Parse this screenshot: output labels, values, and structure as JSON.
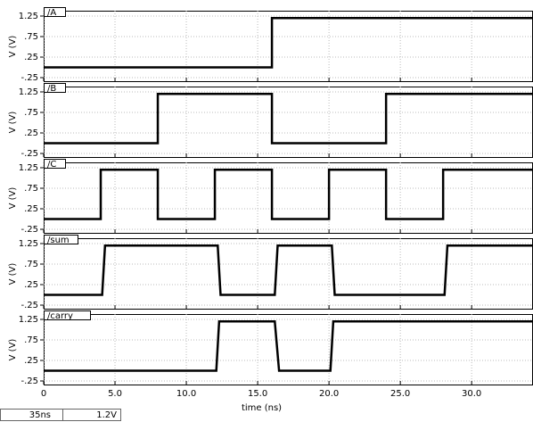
{
  "chart_data": [
    {
      "type": "line",
      "title": "/A",
      "ylabel": "V (V)",
      "x": [
        0,
        16,
        16,
        34.3
      ],
      "values": [
        0,
        0,
        1.2,
        1.2
      ],
      "color": "#000000",
      "xlim": [
        0,
        34.3
      ],
      "xticks": [
        0,
        {
          "value": 5,
          "label": "5.0"
        },
        {
          "value": 10,
          "label": "10.0"
        },
        {
          "value": 15,
          "label": "15.0"
        },
        {
          "value": 20,
          "label": "20.0"
        },
        {
          "value": 25,
          "label": "25.0"
        },
        {
          "value": 30,
          "label": "30.0"
        }
      ],
      "ylim": [
        -0.25,
        1.25
      ],
      "yticks": [
        1.25,
        {
          "value": 0.75,
          "label": ".75"
        },
        {
          "value": 0.25,
          "label": ".25"
        },
        {
          "value": -0.25,
          "label": "-.25"
        }
      ],
      "grid": true
    },
    {
      "type": "line",
      "title": "/B",
      "ylabel": "V (V)",
      "x": [
        0,
        8,
        8,
        16,
        16,
        24,
        24,
        34.3
      ],
      "values": [
        0,
        0,
        1.2,
        1.2,
        0,
        0,
        1.2,
        1.2
      ],
      "color": "#000000",
      "xlim": [
        0,
        34.3
      ],
      "xticks": [
        0,
        {
          "value": 5,
          "label": "5.0"
        },
        {
          "value": 10,
          "label": "10.0"
        },
        {
          "value": 15,
          "label": "15.0"
        },
        {
          "value": 20,
          "label": "20.0"
        },
        {
          "value": 25,
          "label": "25.0"
        },
        {
          "value": 30,
          "label": "30.0"
        }
      ],
      "ylim": [
        -0.25,
        1.25
      ],
      "yticks": [
        1.25,
        {
          "value": 0.75,
          "label": ".75"
        },
        {
          "value": 0.25,
          "label": ".25"
        },
        {
          "value": -0.25,
          "label": "-.25"
        }
      ],
      "grid": true
    },
    {
      "type": "line",
      "title": "/C",
      "ylabel": "V (V)",
      "x": [
        0,
        4,
        4,
        8,
        8,
        12,
        12,
        16,
        16,
        20,
        20,
        24,
        24,
        28,
        28,
        34.3
      ],
      "values": [
        0,
        0,
        1.2,
        1.2,
        0,
        0,
        1.2,
        1.2,
        0,
        0,
        1.2,
        1.2,
        0,
        0,
        1.2,
        1.2
      ],
      "color": "#000000",
      "xlim": [
        0,
        34.3
      ],
      "xticks": [
        0,
        {
          "value": 5,
          "label": "5.0"
        },
        {
          "value": 10,
          "label": "10.0"
        },
        {
          "value": 15,
          "label": "15.0"
        },
        {
          "value": 20,
          "label": "20.0"
        },
        {
          "value": 25,
          "label": "25.0"
        },
        {
          "value": 30,
          "label": "30.0"
        }
      ],
      "ylim": [
        -0.25,
        1.25
      ],
      "yticks": [
        1.25,
        {
          "value": 0.75,
          "label": ".75"
        },
        {
          "value": 0.25,
          "label": ".25"
        },
        {
          "value": -0.25,
          "label": "-.25"
        }
      ],
      "grid": true
    },
    {
      "type": "line",
      "title": "/sum",
      "ylabel": "V (V)",
      "x": [
        0,
        4.1,
        4.3,
        12.2,
        12.4,
        16.2,
        16.4,
        20.2,
        20.4,
        28.1,
        28.3,
        34.3
      ],
      "values": [
        0,
        0,
        1.2,
        1.2,
        0,
        0,
        1.2,
        1.2,
        0,
        0,
        1.2,
        1.2
      ],
      "color": "#000000",
      "xlim": [
        0,
        34.3
      ],
      "xticks": [
        0,
        {
          "value": 5,
          "label": "5.0"
        },
        {
          "value": 10,
          "label": "10.0"
        },
        {
          "value": 15,
          "label": "15.0"
        },
        {
          "value": 20,
          "label": "20.0"
        },
        {
          "value": 25,
          "label": "25.0"
        },
        {
          "value": 30,
          "label": "30.0"
        }
      ],
      "ylim": [
        -0.25,
        1.25
      ],
      "yticks": [
        1.25,
        {
          "value": 0.75,
          "label": ".75"
        },
        {
          "value": 0.25,
          "label": ".25"
        },
        {
          "value": -0.25,
          "label": "-.25"
        }
      ],
      "grid": true
    },
    {
      "type": "line",
      "title": "/carry",
      "ylabel": "V (V)",
      "xlabel": "time (ns)",
      "x": [
        0,
        12.1,
        12.3,
        16.2,
        16.5,
        20.1,
        20.3,
        34.3
      ],
      "values": [
        0,
        0,
        1.2,
        1.2,
        0,
        0,
        1.2,
        1.2
      ],
      "color": "#000000",
      "xlim": [
        0,
        34.3
      ],
      "xticks": [
        0,
        {
          "value": 5,
          "label": "5.0"
        },
        {
          "value": 10,
          "label": "10.0"
        },
        {
          "value": 15,
          "label": "15.0"
        },
        {
          "value": 20,
          "label": "20.0"
        },
        {
          "value": 25,
          "label": "25.0"
        },
        {
          "value": 30,
          "label": "30.0"
        }
      ],
      "ylim": [
        -0.25,
        1.25
      ],
      "yticks": [
        1.25,
        {
          "value": 0.75,
          "label": ".75"
        },
        {
          "value": 0.25,
          "label": ".25"
        },
        {
          "value": -0.25,
          "label": "-.25"
        }
      ],
      "grid": true
    }
  ],
  "status_bar": {
    "time": "35ns",
    "voltage": "1.2V"
  }
}
